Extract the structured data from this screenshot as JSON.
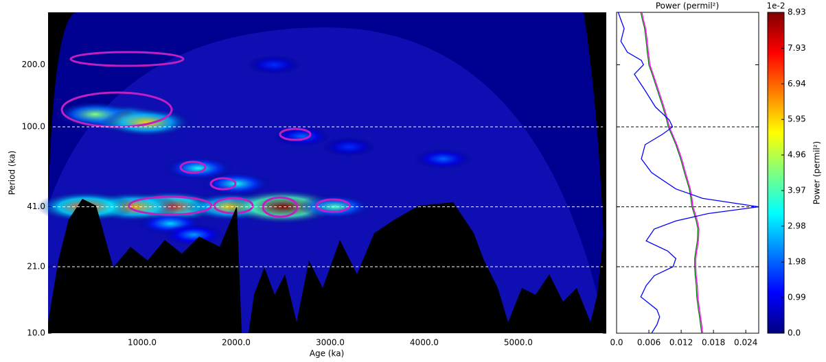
{
  "chart_data": [
    {
      "type": "heatmap",
      "xlabel": "Age (ka)",
      "ylabel": "Period (ka)",
      "xlim": [
        0,
        5935
      ],
      "ylim": [
        10,
        359
      ],
      "ylog": true,
      "xticks": [
        {
          "value": 1000,
          "label": "1000.0"
        },
        {
          "value": 2000,
          "label": "2000.0"
        },
        {
          "value": 3000,
          "label": "3000.0"
        },
        {
          "value": 4000,
          "label": "4000.0"
        },
        {
          "value": 5000,
          "label": "5000.0"
        }
      ],
      "yticks": [
        {
          "value": 10,
          "label": "10.0"
        },
        {
          "value": 21,
          "label": "21.0"
        },
        {
          "value": 41,
          "label": "41.0"
        },
        {
          "value": 100,
          "label": "100.0"
        },
        {
          "value": 200,
          "label": "200.0"
        }
      ],
      "hlines": [
        21,
        41,
        100
      ],
      "x": [
        1300,
        900,
        400,
        1950,
        2500,
        3050,
        800,
        500,
        1050,
        1600,
        2000,
        4200,
        3200,
        2400,
        1300,
        1550,
        2700
      ],
      "y": [
        41,
        41,
        41,
        41,
        41,
        41,
        110,
        115,
        105,
        63,
        53,
        70,
        80,
        200,
        34,
        30,
        90
      ],
      "values": [
        7.5,
        6.5,
        7.0,
        6.0,
        8.93,
        4.0,
        5.5,
        4.5,
        6.0,
        3.5,
        3.5,
        2.0,
        1.5,
        1.5,
        3.0,
        2.5,
        2.0
      ]
    },
    {
      "type": "line",
      "title": "Power (permil²)",
      "xlim": [
        0,
        0.0264
      ],
      "ylim": [
        10,
        359
      ],
      "ylog": true,
      "xticks": [
        {
          "value": 0,
          "label": "0.0"
        },
        0.006,
        0.012,
        0.018,
        0.024
      ],
      "yticks": [
        21,
        41,
        100,
        200
      ],
      "hlines": [
        21,
        41,
        100
      ],
      "y": [
        359,
        330,
        300,
        260,
        230,
        210,
        200,
        180,
        150,
        125,
        108,
        100,
        92,
        82,
        70,
        60,
        50,
        45,
        41,
        38,
        35,
        32,
        28,
        25,
        23,
        21,
        19,
        17,
        15,
        13,
        12,
        11,
        10
      ],
      "series": [
        {
          "color": "#0000ff",
          "values": [
            0.0003,
            0.0008,
            0.0014,
            0.0008,
            0.002,
            0.0046,
            0.005,
            0.0033,
            0.0053,
            0.0072,
            0.0098,
            0.0104,
            0.0085,
            0.0053,
            0.0046,
            0.0065,
            0.011,
            0.016,
            0.0264,
            0.017,
            0.011,
            0.007,
            0.0055,
            0.0095,
            0.011,
            0.0105,
            0.007,
            0.0055,
            0.0045,
            0.0075,
            0.008,
            0.0075,
            0.0065
          ]
        },
        {
          "color": "#ff00ff",
          "values": [
            0.0047,
            0.005,
            0.0054,
            0.0057,
            0.0059,
            0.0061,
            0.0062,
            0.0068,
            0.0078,
            0.0088,
            0.0095,
            0.0098,
            0.0104,
            0.0112,
            0.0121,
            0.0128,
            0.0137,
            0.014,
            0.0142,
            0.0146,
            0.015,
            0.0153,
            0.0152,
            0.0149,
            0.0147,
            0.0147,
            0.0148,
            0.015,
            0.0151,
            0.0154,
            0.0156,
            0.0158,
            0.016
          ]
        },
        {
          "color": "#008000",
          "values": [
            0.0045,
            0.0048,
            0.0052,
            0.0055,
            0.0057,
            0.0059,
            0.006,
            0.0066,
            0.0076,
            0.0086,
            0.0093,
            0.0096,
            0.0102,
            0.011,
            0.0119,
            0.0126,
            0.0135,
            0.0138,
            0.014,
            0.0144,
            0.0148,
            0.0151,
            0.015,
            0.0147,
            0.0145,
            0.0145,
            0.0146,
            0.0148,
            0.0149,
            0.0152,
            0.0154,
            0.0156,
            0.0158
          ]
        }
      ]
    },
    {
      "type": "colorbar",
      "label": "Power (permil²)",
      "offset": "1e-2",
      "ylim": [
        0,
        8.93
      ],
      "yticks": [
        {
          "value": 0,
          "label": "0.0"
        },
        0.99,
        1.98,
        2.98,
        3.97,
        4.96,
        5.95,
        6.94,
        7.93,
        8.93
      ],
      "colors": [
        "#00007f",
        "#0000ff",
        "#007fff",
        "#00ffff",
        "#7fff7f",
        "#ffff00",
        "#ff7f00",
        "#ff0000",
        "#7f0000"
      ]
    }
  ]
}
